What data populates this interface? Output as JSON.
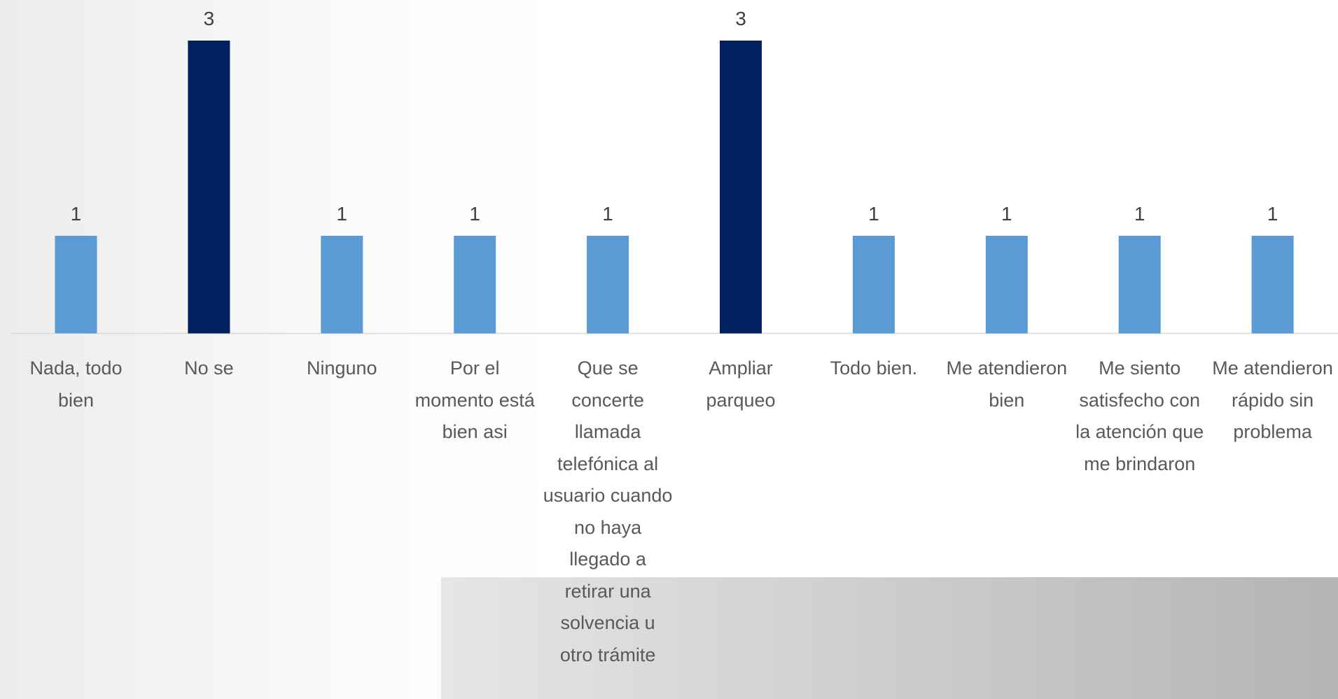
{
  "chart_data": {
    "type": "bar",
    "categories": [
      "Nada, todo bien",
      "No se",
      "Ninguno",
      "Por el momento está bien asi",
      "Que se concerte llamada telefónica al usuario cuando no haya llegado a retirar una solvencia u otro trámite",
      "Ampliar parqueo",
      "Todo bien.",
      "Me atendieron bien",
      "Me siento satisfecho con la atención que me brindaron",
      "Me atendieron rápido sin problema"
    ],
    "values": [
      1,
      3,
      1,
      1,
      1,
      3,
      1,
      1,
      1,
      1
    ],
    "colors": [
      "#5b9bd5",
      "#002060",
      "#5b9bd5",
      "#5b9bd5",
      "#5b9bd5",
      "#002060",
      "#5b9bd5",
      "#5b9bd5",
      "#5b9bd5",
      "#5b9bd5"
    ]
  }
}
